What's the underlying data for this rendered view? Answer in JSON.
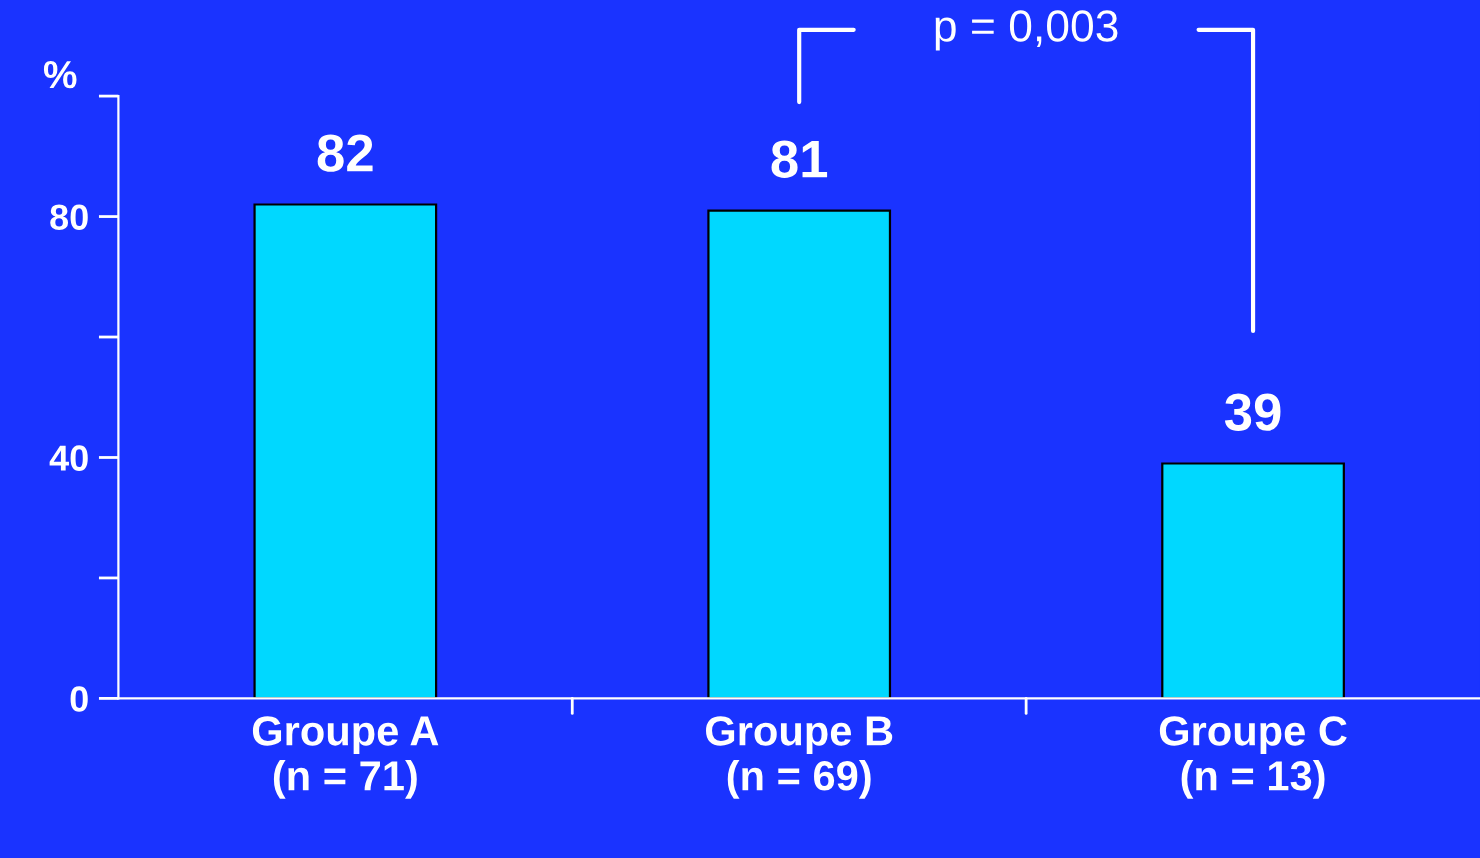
{
  "chart_data": {
    "type": "bar",
    "categories": [
      "Groupe A\n(n = 71)",
      "Groupe B\n(n = 69)",
      "Groupe C\n(n = 13)"
    ],
    "values": [
      82,
      81,
      39
    ],
    "color": "#00d8ff",
    "data_labels": true,
    "ylabel": "%",
    "ylim": [
      0,
      100
    ],
    "yticks": [
      0,
      {
        "value": 20,
        "label": null
      },
      40,
      {
        "value": 60,
        "label": null
      },
      80,
      {
        "value": 100,
        "label": null
      }
    ],
    "grid": false,
    "legend": false,
    "annotations": [
      "p = 0,003"
    ]
  }
}
